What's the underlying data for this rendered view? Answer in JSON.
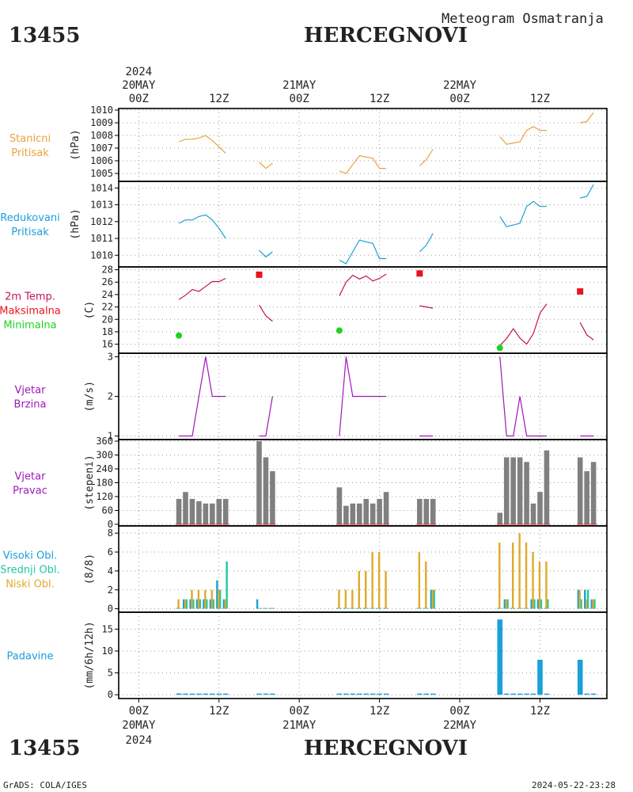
{
  "header": {
    "station_id": "13455",
    "station_name": "HERCEGNOVI",
    "subtitle": "Meteogram Osmatranja",
    "credit": "GrADS: COLA/IGES",
    "timestamp": "2024-05-22-23:28"
  },
  "time_axis": {
    "top_year": "2024",
    "bottom_year": "2024",
    "ticks": [
      {
        "hour": 0,
        "label": "00Z",
        "date": "20MAY"
      },
      {
        "hour": 12,
        "label": "12Z",
        "date": ""
      },
      {
        "hour": 24,
        "label": "00Z",
        "date": "21MAY"
      },
      {
        "hour": 36,
        "label": "12Z",
        "date": ""
      },
      {
        "hour": 48,
        "label": "00Z",
        "date": "22MAY"
      },
      {
        "hour": 60,
        "label": "12Z",
        "date": ""
      }
    ],
    "range_hours": [
      -3,
      70
    ]
  },
  "colors": {
    "stanicni": "#e8a33c",
    "redukovani": "#1ba0d8",
    "temp": "#c0145c",
    "tmax": "#e8141e",
    "tmin": "#1ed21e",
    "wind": "#a018b8",
    "dir_bar": "#808080",
    "dir_base": "#e8141e",
    "high": "#1ba0d8",
    "mid": "#1ec8a0",
    "low": "#e0aa28",
    "precip": "#1ba0d8"
  },
  "chart_data": [
    {
      "type": "line",
      "labels": [
        "Stanicni",
        "Pritisak"
      ],
      "ylabel": "(hPa)",
      "ylim": [
        1004.5,
        1010
      ],
      "yticks": [
        1005,
        1006,
        1007,
        1008,
        1009,
        1010
      ],
      "series": [
        {
          "name": "Stanicni Pritisak",
          "color": "stanicni",
          "segments": [
            [
              [
                6,
                1007.5
              ],
              [
                7,
                1007.7
              ],
              [
                8,
                1007.7
              ],
              [
                9,
                1007.8
              ],
              [
                10,
                1008
              ],
              [
                11,
                1007.6
              ],
              [
                12,
                1007.1
              ],
              [
                13,
                1006.6
              ]
            ],
            [
              [
                18,
                1005.9
              ],
              [
                19,
                1005.4
              ],
              [
                20,
                1005.8
              ]
            ],
            [
              [
                30,
                1005.2
              ],
              [
                31,
                1005
              ],
              [
                32,
                1005.7
              ],
              [
                33,
                1006.4
              ],
              [
                34,
                1006.3
              ],
              [
                35,
                1006.2
              ],
              [
                36,
                1005.4
              ],
              [
                37,
                1005.4
              ]
            ],
            [
              [
                42,
                1005.6
              ],
              [
                43,
                1006.1
              ],
              [
                44,
                1006.9
              ]
            ],
            [
              [
                54,
                1007.9
              ],
              [
                55,
                1007.3
              ],
              [
                56,
                1007.4
              ],
              [
                57,
                1007.5
              ],
              [
                58,
                1008.4
              ],
              [
                59,
                1008.7
              ],
              [
                60,
                1008.4
              ],
              [
                61,
                1008.4
              ]
            ],
            [
              [
                66,
                1009
              ],
              [
                67,
                1009.1
              ],
              [
                68,
                1009.8
              ]
            ]
          ]
        }
      ]
    },
    {
      "type": "line",
      "labels": [
        "Redukovani",
        "Pritisak"
      ],
      "ylabel": "(hPa)",
      "ylim": [
        1009.4,
        1014.3
      ],
      "yticks": [
        1010,
        1011,
        1012,
        1013,
        1014
      ],
      "series": [
        {
          "name": "Redukovani Pritisak",
          "color": "redukovani",
          "segments": [
            [
              [
                6,
                1011.9
              ],
              [
                7,
                1012.1
              ],
              [
                8,
                1012.1
              ],
              [
                9,
                1012.3
              ],
              [
                10,
                1012.4
              ],
              [
                11,
                1012.1
              ],
              [
                12,
                1011.6
              ],
              [
                13,
                1011
              ]
            ],
            [
              [
                18,
                1010.3
              ],
              [
                19,
                1009.9
              ],
              [
                20,
                1010.2
              ]
            ],
            [
              [
                30,
                1009.7
              ],
              [
                31,
                1009.5
              ],
              [
                32,
                1010.2
              ],
              [
                33,
                1010.9
              ],
              [
                34,
                1010.8
              ],
              [
                35,
                1010.7
              ],
              [
                36,
                1009.8
              ],
              [
                37,
                1009.8
              ]
            ],
            [
              [
                42,
                1010.2
              ],
              [
                43,
                1010.6
              ],
              [
                44,
                1011.3
              ]
            ],
            [
              [
                54,
                1012.3
              ],
              [
                55,
                1011.7
              ],
              [
                56,
                1011.8
              ],
              [
                57,
                1011.9
              ],
              [
                58,
                1012.9
              ],
              [
                59,
                1013.2
              ],
              [
                60,
                1012.9
              ],
              [
                61,
                1012.9
              ]
            ],
            [
              [
                66,
                1013.4
              ],
              [
                67,
                1013.5
              ],
              [
                68,
                1014.2
              ]
            ]
          ]
        }
      ]
    },
    {
      "type": "line",
      "labels": [
        "2m Temp.",
        "Maksimalna",
        "Minimalna"
      ],
      "label_colors": [
        "temp",
        "tmax",
        "tmin"
      ],
      "ylabel": "(C)",
      "ylim": [
        14.8,
        28.2
      ],
      "yticks": [
        16,
        18,
        20,
        22,
        24,
        26,
        28
      ],
      "series": [
        {
          "name": "2m Temp.",
          "color": "temp",
          "segments": [
            [
              [
                6,
                23.2
              ],
              [
                7,
                23.9
              ],
              [
                8,
                24.8
              ],
              [
                9,
                24.5
              ],
              [
                10,
                25.3
              ],
              [
                11,
                26.1
              ],
              [
                12,
                26.1
              ],
              [
                13,
                26.6
              ]
            ],
            [
              [
                18,
                22.3
              ],
              [
                19,
                20.6
              ],
              [
                20,
                19.7
              ]
            ],
            [
              [
                30,
                23.8
              ],
              [
                31,
                26
              ],
              [
                32,
                27.1
              ],
              [
                33,
                26.5
              ],
              [
                34,
                27
              ],
              [
                35,
                26.2
              ],
              [
                36,
                26.6
              ],
              [
                37,
                27.3
              ]
            ],
            [
              [
                42,
                22.2
              ],
              [
                43,
                22
              ],
              [
                44,
                21.8
              ]
            ],
            [
              [
                54,
                15.8
              ],
              [
                55,
                16.9
              ],
              [
                56,
                18.5
              ],
              [
                57,
                17
              ],
              [
                58,
                16
              ],
              [
                59,
                17.7
              ],
              [
                60,
                21
              ],
              [
                61,
                22.5
              ]
            ],
            [
              [
                66,
                19.5
              ],
              [
                67,
                17.5
              ],
              [
                68,
                16.7
              ]
            ]
          ]
        }
      ],
      "maxima": [
        [
          18,
          27.2
        ],
        [
          42,
          27.4
        ],
        [
          66,
          24.5
        ]
      ],
      "minima": [
        [
          6,
          17.4
        ],
        [
          30,
          18.2
        ],
        [
          54,
          15.4
        ]
      ]
    },
    {
      "type": "line",
      "labels": [
        "Vjetar",
        "Brzina"
      ],
      "ylabel": "(m/s)",
      "ylim": [
        0.95,
        3.05
      ],
      "yticks": [
        1,
        2,
        3
      ],
      "series": [
        {
          "name": "Vjetar Brzina",
          "color": "wind",
          "segments": [
            [
              [
                6,
                1
              ],
              [
                7,
                1
              ],
              [
                8,
                1
              ],
              [
                9,
                2
              ],
              [
                10,
                3
              ],
              [
                11,
                2
              ],
              [
                12,
                2
              ],
              [
                13,
                2
              ]
            ],
            [
              [
                18,
                1
              ],
              [
                19,
                1
              ],
              [
                20,
                2
              ]
            ],
            [
              [
                30,
                1
              ],
              [
                31,
                3
              ],
              [
                32,
                2
              ],
              [
                33,
                2
              ],
              [
                34,
                2
              ],
              [
                35,
                2
              ],
              [
                36,
                2
              ],
              [
                37,
                2
              ]
            ],
            [
              [
                42,
                1
              ],
              [
                43,
                1
              ],
              [
                44,
                1
              ]
            ],
            [
              [
                54,
                3
              ],
              [
                55,
                1
              ],
              [
                56,
                1
              ],
              [
                57,
                2
              ],
              [
                58,
                1
              ],
              [
                59,
                1
              ],
              [
                60,
                1
              ],
              [
                61,
                1
              ]
            ],
            [
              [
                66,
                1
              ],
              [
                67,
                1
              ],
              [
                68,
                1
              ]
            ]
          ]
        }
      ]
    },
    {
      "type": "bar",
      "labels": [
        "Vjetar",
        "Pravac"
      ],
      "ylabel": "(stepeni)",
      "ylim": [
        0,
        360
      ],
      "yticks": [
        0,
        60,
        120,
        180,
        240,
        300,
        360
      ],
      "x": [
        6,
        7,
        8,
        9,
        10,
        11,
        12,
        13,
        18,
        19,
        20,
        30,
        31,
        32,
        33,
        34,
        35,
        36,
        37,
        42,
        43,
        44,
        54,
        55,
        56,
        57,
        58,
        59,
        60,
        61,
        66,
        67,
        68
      ],
      "values": [
        110,
        140,
        110,
        100,
        90,
        90,
        110,
        110,
        360,
        290,
        230,
        160,
        80,
        90,
        90,
        110,
        90,
        110,
        140,
        110,
        110,
        110,
        50,
        290,
        290,
        290,
        270,
        90,
        140,
        320,
        290,
        230,
        270
      ]
    },
    {
      "type": "bar",
      "labels": [
        "Visoki Obl.",
        "Srednji Obl.",
        "Niski Obl."
      ],
      "label_colors": [
        "high",
        "mid",
        "low"
      ],
      "ylabel": "(8/8)",
      "ylim": [
        -0.2,
        8.6
      ],
      "yticks": [
        0,
        2,
        4,
        6,
        8
      ],
      "x": [
        6,
        7,
        8,
        9,
        10,
        11,
        12,
        13,
        18,
        19,
        20,
        30,
        31,
        32,
        33,
        34,
        35,
        36,
        37,
        42,
        43,
        44,
        54,
        55,
        56,
        57,
        58,
        59,
        60,
        61,
        66,
        67,
        68
      ],
      "series": [
        {
          "name": "Visoki Obl.",
          "color": "high",
          "values": [
            0,
            1,
            1,
            1,
            1,
            1,
            3,
            1,
            1,
            0,
            0,
            0,
            0,
            0,
            0,
            0,
            0,
            0,
            0,
            0,
            0,
            2,
            0,
            1,
            0,
            0,
            0,
            1,
            1,
            0,
            2,
            2,
            1
          ]
        },
        {
          "name": "Srednji Obl.",
          "color": "mid",
          "values": [
            0,
            1,
            1,
            1,
            1,
            1,
            2,
            5,
            0,
            0,
            0,
            0,
            0,
            0,
            0,
            0,
            0,
            0,
            0,
            0,
            0,
            2,
            0,
            1,
            0,
            0,
            0,
            1,
            1,
            1,
            1,
            2,
            1
          ]
        },
        {
          "name": "Niski Obl.",
          "color": "low",
          "values": [
            1,
            1,
            2,
            2,
            2,
            2,
            2,
            1,
            0,
            0,
            0,
            2,
            2,
            2,
            4,
            4,
            6,
            6,
            4,
            6,
            5,
            2,
            7,
            1,
            7,
            8,
            7,
            6,
            5,
            5,
            2,
            1,
            1
          ]
        }
      ]
    },
    {
      "type": "bar",
      "labels": [
        "Padavine"
      ],
      "ylabel": "(mm/6h/12h)",
      "ylim": [
        -0.5,
        18.5
      ],
      "yticks": [
        0,
        5,
        10,
        15
      ],
      "x": [
        6,
        7,
        8,
        9,
        10,
        11,
        12,
        13,
        18,
        19,
        20,
        30,
        31,
        32,
        33,
        34,
        35,
        36,
        37,
        42,
        43,
        44,
        54,
        55,
        56,
        57,
        58,
        59,
        60,
        61,
        66,
        67,
        68
      ],
      "values": [
        0.3,
        0.1,
        0.1,
        0.1,
        0.1,
        0.1,
        0.1,
        0.1,
        0.1,
        0.1,
        0.1,
        0.1,
        0.1,
        0.1,
        0.1,
        0.1,
        0.1,
        0.1,
        0.1,
        0.1,
        0.1,
        0.1,
        17.2,
        0.1,
        0.1,
        0.1,
        0.1,
        0.1,
        8,
        0.1,
        8,
        0.1,
        0.1
      ]
    }
  ]
}
